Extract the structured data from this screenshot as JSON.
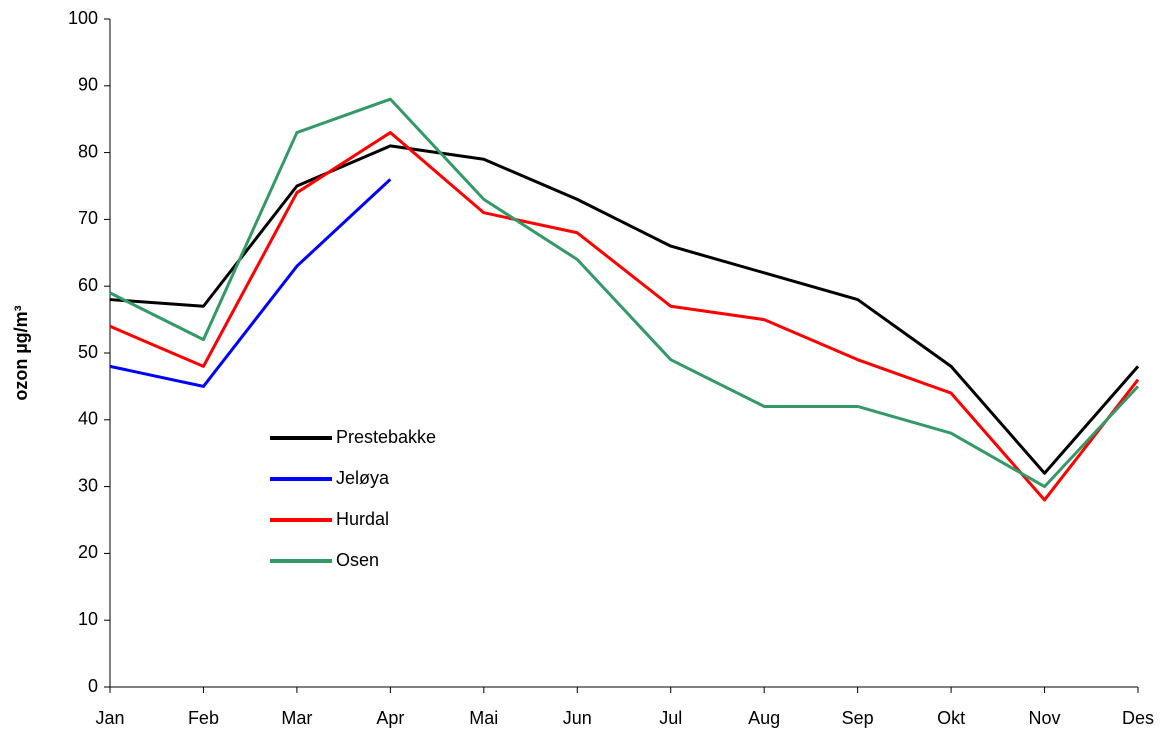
{
  "chart_data": {
    "type": "line",
    "y_label": "ozon µg/m³",
    "categories": [
      "Jan",
      "Feb",
      "Mar",
      "Apr",
      "Mai",
      "Jun",
      "Jul",
      "Aug",
      "Sep",
      "Okt",
      "Nov",
      "Des"
    ],
    "series": [
      {
        "name": "Prestebakke",
        "color": "#000000",
        "values": [
          58,
          57,
          75,
          81,
          79,
          73,
          66,
          62,
          58,
          48,
          32,
          48
        ]
      },
      {
        "name": "Jeløya",
        "color": "#0000ff",
        "values": [
          48,
          45,
          63,
          76,
          null,
          null,
          null,
          null,
          null,
          null,
          null,
          null
        ]
      },
      {
        "name": "Hurdal",
        "color": "#ff0000",
        "values": [
          54,
          48,
          74,
          83,
          71,
          68,
          57,
          55,
          49,
          44,
          28,
          46
        ]
      },
      {
        "name": "Osen",
        "color": "#339966",
        "values": [
          59,
          52,
          83,
          88,
          73,
          64,
          49,
          42,
          42,
          38,
          30,
          45
        ]
      }
    ],
    "ylim": [
      0,
      100
    ],
    "yticks": [
      0,
      10,
      20,
      30,
      40,
      50,
      60,
      70,
      80,
      90,
      100
    ],
    "grid": false,
    "legend": "inside-left"
  }
}
